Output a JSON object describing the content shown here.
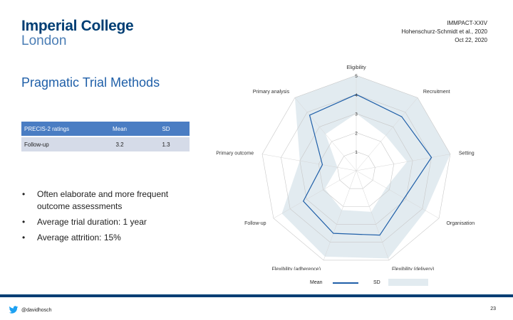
{
  "logo": {
    "line1": "Imperial College",
    "line2": "London"
  },
  "meta": {
    "line1": "IMMPACT-XXIV",
    "line2": "Hohenschurz-Schmidt et al., 2020",
    "line3": "Oct 22, 2020"
  },
  "title": "Pragmatic Trial Methods",
  "table": {
    "headers": [
      "PRECIS-2 ratings",
      "Mean",
      "SD"
    ],
    "rows": [
      [
        "Follow-up",
        "3.2",
        "1.3"
      ]
    ]
  },
  "bullets": [
    "Often elaborate and more frequent outcome assessments",
    "Average trial duration: 1 year",
    "Average attrition: 15%"
  ],
  "bullet_symbol": "•",
  "chart_data": {
    "type": "radar",
    "axes": [
      "Eligibility",
      "Recruitment",
      "Setting",
      "Organisation",
      "Flexibility (delivery)",
      "Flexibility (adherence)",
      "Follow-up",
      "Primary outcome",
      "Primary analysis"
    ],
    "rlim": [
      1,
      5
    ],
    "ticks": [
      "1",
      "2",
      "3",
      "4",
      "5"
    ],
    "series": [
      {
        "name": "Mean",
        "values": [
          4.0,
          3.7,
          4.0,
          2.9,
          3.6,
          3.5,
          3.2,
          1.8,
          3.8
        ],
        "color": "#1f5fa8"
      }
    ],
    "sd_band": {
      "name": "SD",
      "upper": [
        5.0,
        5.0,
        5.0,
        4.2,
        4.9,
        4.8,
        4.5,
        3.0,
        5.0
      ],
      "lower": [
        3.0,
        2.4,
        2.7,
        1.8,
        2.3,
        2.2,
        1.9,
        1.0,
        2.5
      ],
      "color": "#e2ebf0"
    },
    "legend": [
      "Mean",
      "SD"
    ]
  },
  "footer": {
    "handle": "@davidhosch",
    "page": "23"
  },
  "colors": {
    "brand": "#003e74",
    "accent": "#1f5fa8",
    "table_header": "#4a7dc3",
    "table_row": "#d5dbe8"
  }
}
